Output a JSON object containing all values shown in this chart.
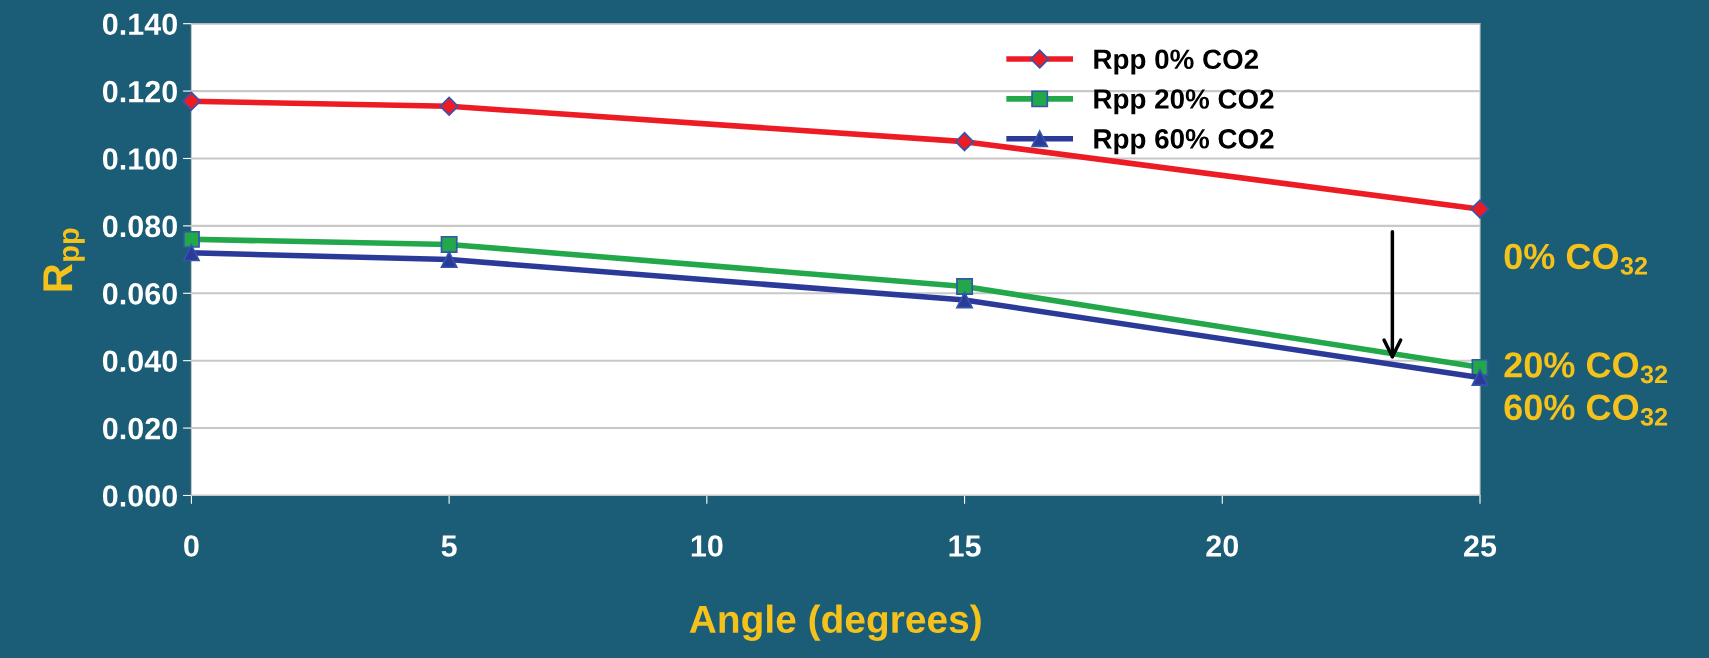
{
  "chart_data": {
    "type": "line",
    "xlabel": "Angle (degrees)",
    "ylabel": "R$_{pp}$",
    "x": [
      0,
      5,
      15,
      25
    ],
    "series": [
      {
        "name": "Rpp 0% CO2",
        "color": "#ed1c24",
        "values": [
          0.117,
          0.1155,
          0.105,
          0.085
        ],
        "marker": "diamond"
      },
      {
        "name": "Rpp 20% CO2",
        "color": "#22a84a",
        "values": [
          0.076,
          0.0745,
          0.062,
          0.038
        ],
        "marker": "square"
      },
      {
        "name": "Rpp 60% CO2",
        "color": "#2b3a98",
        "values": [
          0.072,
          0.07,
          0.058,
          0.035
        ],
        "marker": "triangle"
      }
    ],
    "xlim": [
      0,
      25
    ],
    "xticks": [
      0,
      5,
      10,
      15,
      20,
      25
    ],
    "ylim": [
      0,
      0.14
    ],
    "yticks": [
      {
        "value": 0,
        "label": "0.000"
      },
      {
        "value": 0.02,
        "label": "0.020"
      },
      {
        "value": 0.04,
        "label": "0.040"
      },
      {
        "value": 0.06,
        "label": "0.060"
      },
      {
        "value": 0.08,
        "label": "0.080"
      },
      {
        "value": 0.1,
        "label": "0.100"
      },
      {
        "value": 0.12,
        "label": "0.120"
      },
      {
        "value": 0.14,
        "label": "0.140"
      }
    ],
    "grid": "y",
    "legend": "top right",
    "annotations": [
      "0% CO$_{32}$",
      "20% CO$_{32}$",
      "60% CO$_{32}$"
    ]
  }
}
